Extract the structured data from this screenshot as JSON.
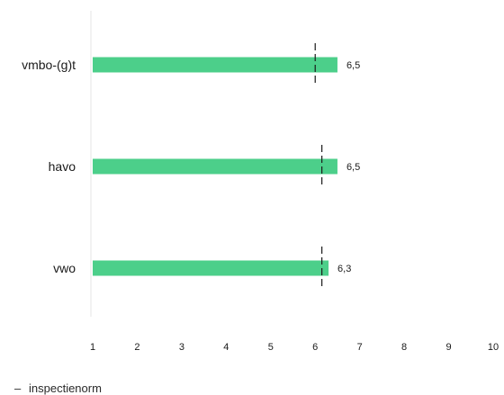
{
  "chart_data": {
    "type": "bar",
    "orientation": "horizontal",
    "categories": [
      "vmbo-(g)t",
      "havo",
      "vwo"
    ],
    "values": [
      6.5,
      6.5,
      6.3
    ],
    "value_labels": [
      "6,5",
      "6,5",
      "6,3"
    ],
    "norm_values": [
      6.0,
      6.15,
      6.15
    ],
    "xlim": [
      1,
      10
    ],
    "xticks": [
      "1",
      "2",
      "3",
      "4",
      "5",
      "6",
      "7",
      "8",
      "9",
      "10"
    ],
    "grid": false,
    "bar_color": "#4ccf8a",
    "norm_color": "#1a1a1a",
    "legend": {
      "placement": "bottom-left",
      "symbol": "–",
      "label": "inspectienorm"
    }
  }
}
